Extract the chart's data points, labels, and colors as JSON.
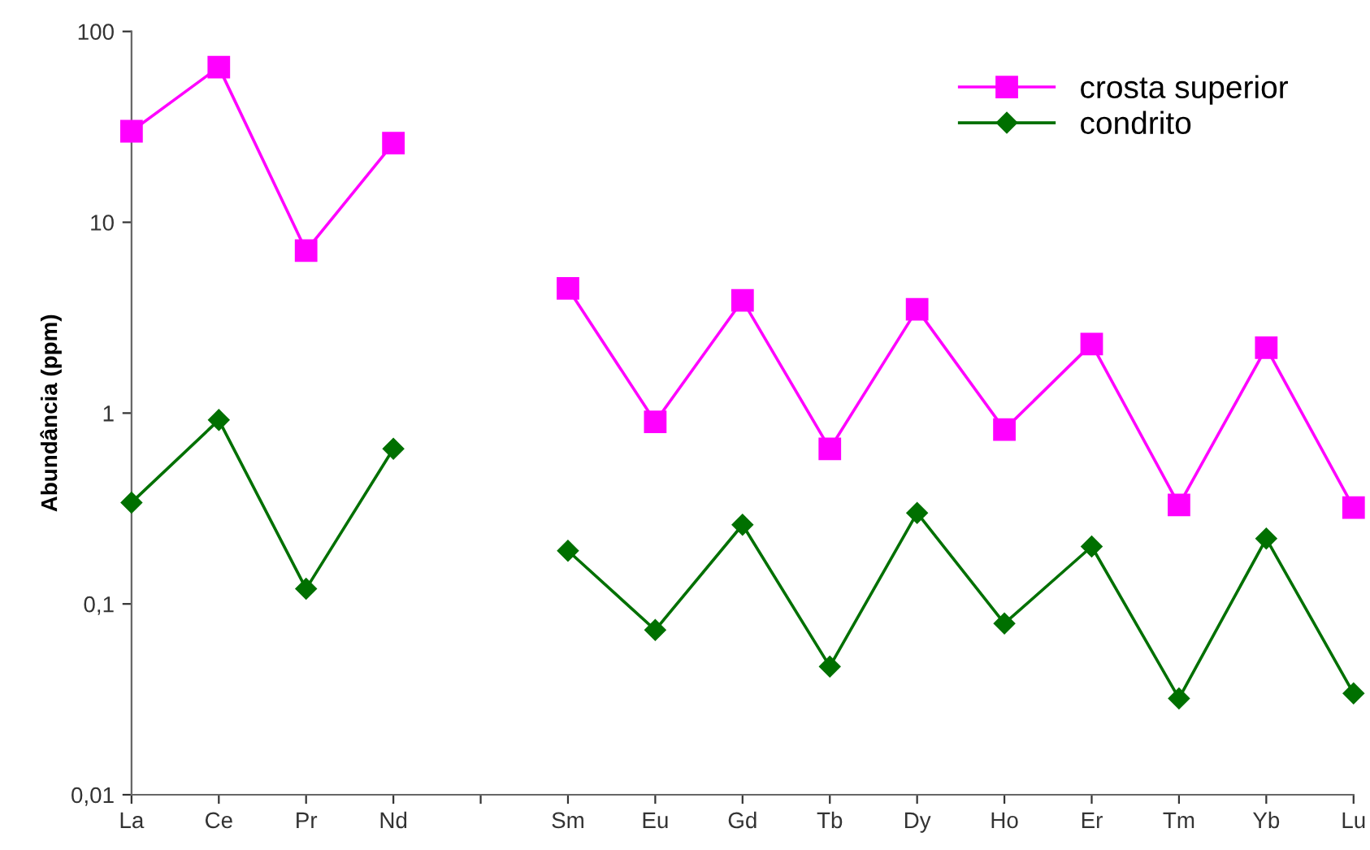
{
  "chart_data": {
    "type": "line",
    "ylabel": "Abundância (ppm)",
    "categories": [
      "La",
      "Ce",
      "Pr",
      "Nd",
      null,
      "Sm",
      "Eu",
      "Gd",
      "Tb",
      "Dy",
      "Ho",
      "Er",
      "Tm",
      "Yb",
      "Lu"
    ],
    "series": [
      {
        "name": "crosta superior",
        "color": "#ff00ff",
        "marker": "square",
        "values": [
          30,
          65,
          7.1,
          26,
          null,
          4.5,
          0.9,
          3.9,
          0.65,
          3.5,
          0.82,
          2.3,
          0.33,
          2.2,
          0.32
        ]
      },
      {
        "name": "condrito",
        "color": "#007000",
        "marker": "diamond",
        "values": [
          0.34,
          0.92,
          0.12,
          0.65,
          null,
          0.19,
          0.073,
          0.26,
          0.047,
          0.3,
          0.079,
          0.2,
          0.032,
          0.22,
          0.034
        ]
      }
    ],
    "log": true,
    "ylim": [
      0.01,
      100
    ],
    "yticks": [
      {
        "value": 0.01,
        "label": "0,01"
      },
      {
        "value": 0.1,
        "label": "0,1"
      },
      1,
      10,
      100
    ],
    "grid": false,
    "legend": "top right",
    "line_style": "solid"
  }
}
